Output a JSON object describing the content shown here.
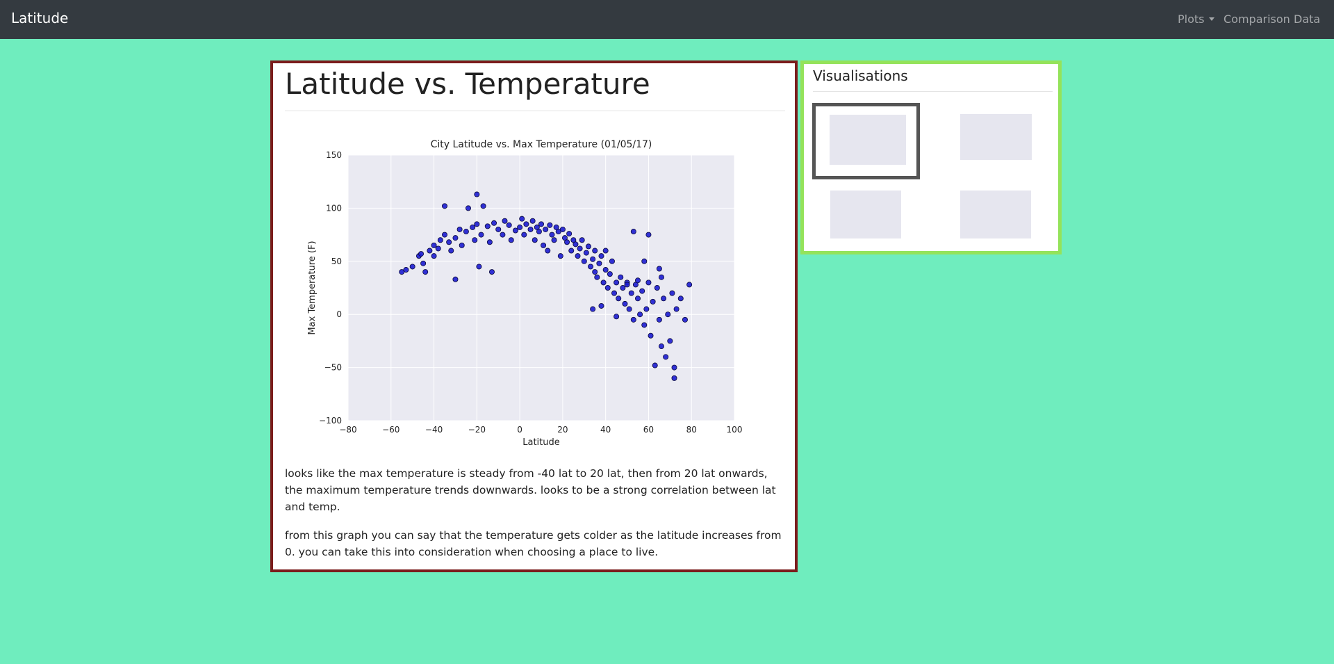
{
  "navbar": {
    "brand": "Latitude",
    "links": [
      "Plots",
      "Comparison",
      "Data"
    ]
  },
  "main": {
    "heading": "Latitude vs. Temperature",
    "paragraphs": [
      "looks like the max temperature is steady from -40 lat to 20 lat, then from 20 lat onwards, the maximum temperature trends downwards. looks to be a strong correlation between lat and temp.",
      "from this graph you can say that the temperature gets colder as the latitude increases from 0. you can take this into consideration when choosing a place to live."
    ]
  },
  "sidebar": {
    "title": "Visualisations"
  },
  "chart_data": {
    "type": "scatter",
    "title": "City Latitude vs. Max Temperature (01/05/17)",
    "x_label": "Latitude",
    "y_label": "Max Temperature (F)",
    "color": "#1c1cd0",
    "edge_color": "#0a0a3a",
    "grid": true,
    "xlim": [
      -80,
      100
    ],
    "xticks": [
      {
        "value": -80,
        "label": "−80"
      },
      {
        "value": -60,
        "label": "−60"
      },
      {
        "value": -40,
        "label": "−40"
      },
      {
        "value": -20,
        "label": "−20"
      },
      0,
      20,
      40,
      60,
      80,
      100
    ],
    "ylim": [
      -100,
      150
    ],
    "yticks": [
      {
        "value": -100,
        "label": "−100"
      },
      {
        "value": -50,
        "label": "−50"
      },
      0,
      50,
      100,
      150
    ],
    "x": [
      -55,
      -53,
      -50,
      -47,
      -46,
      -45,
      -44,
      -42,
      -40,
      -40,
      -38,
      -37,
      -35,
      -35,
      -33,
      -32,
      -30,
      -30,
      -28,
      -27,
      -25,
      -24,
      -22,
      -21,
      -20,
      -20,
      -19,
      -18,
      -17,
      -15,
      -14,
      -13,
      -12,
      -10,
      -8,
      -7,
      -5,
      -4,
      -2,
      0,
      1,
      2,
      3,
      5,
      6,
      7,
      8,
      9,
      10,
      11,
      12,
      13,
      14,
      15,
      16,
      17,
      18,
      19,
      20,
      21,
      22,
      23,
      24,
      25,
      26,
      27,
      28,
      29,
      30,
      31,
      32,
      33,
      34,
      35,
      35,
      36,
      37,
      38,
      39,
      40,
      40,
      41,
      42,
      43,
      44,
      34,
      45,
      46,
      47,
      48,
      49,
      50,
      51,
      52,
      53,
      53,
      54,
      55,
      56,
      57,
      58,
      58,
      59,
      60,
      61,
      62,
      63,
      64,
      65,
      66,
      67,
      68,
      69,
      70,
      71,
      72,
      72,
      73,
      75,
      77,
      79,
      60,
      65,
      66,
      38,
      45,
      50,
      55
    ],
    "values": [
      40,
      42,
      45,
      55,
      57,
      48,
      40,
      60,
      65,
      55,
      62,
      70,
      75,
      102,
      68,
      60,
      33,
      72,
      80,
      65,
      78,
      100,
      82,
      70,
      113,
      85,
      45,
      75,
      102,
      83,
      68,
      40,
      86,
      80,
      75,
      88,
      84,
      70,
      79,
      82,
      90,
      75,
      85,
      80,
      88,
      70,
      82,
      78,
      85,
      65,
      80,
      60,
      84,
      75,
      70,
      82,
      78,
      55,
      80,
      72,
      68,
      76,
      60,
      70,
      66,
      55,
      62,
      70,
      50,
      58,
      64,
      45,
      52,
      40,
      60,
      35,
      48,
      55,
      30,
      42,
      60,
      25,
      38,
      50,
      20,
      5,
      30,
      15,
      35,
      25,
      10,
      30,
      5,
      20,
      -5,
      78,
      28,
      15,
      0,
      22,
      -10,
      50,
      5,
      30,
      -20,
      12,
      -48,
      25,
      -5,
      -30,
      15,
      -40,
      0,
      -25,
      20,
      -50,
      -60,
      5,
      15,
      -5,
      28,
      75,
      43,
      35,
      8,
      -2,
      28,
      32
    ]
  }
}
